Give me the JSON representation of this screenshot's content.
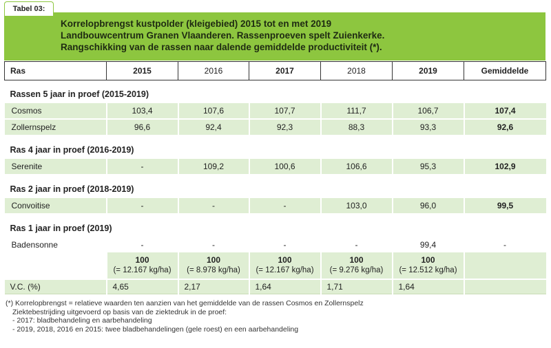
{
  "tab_label": "Tabel 03:",
  "title_lines": [
    "Korrelopbrengst kustpolder (kleigebied) 2015 tot en met 2019",
    "Landbouwcentrum Granen Vlaanderen. Rassenproeven spelt Zuienkerke.",
    "Rangschikking van de rassen naar dalende gemiddelde productiviteit (*)."
  ],
  "header": [
    "Ras",
    "2015",
    "2016",
    "2017",
    "2018",
    "2019",
    "Gemiddelde"
  ],
  "sections": [
    {
      "title": "Rassen 5 jaar in proef (2015-2019)",
      "rows": [
        {
          "name": "Cosmos",
          "values": [
            "103,4",
            "107,6",
            "107,7",
            "111,7",
            "106,7"
          ],
          "avg": "107,4"
        },
        {
          "name": "Zollernspelz",
          "values": [
            "96,6",
            "92,4",
            "92,3",
            "88,3",
            "93,3"
          ],
          "avg": "92,6"
        }
      ]
    },
    {
      "title": "Ras 4 jaar in proef (2016-2019)",
      "rows": [
        {
          "name": "Serenite",
          "values": [
            "-",
            "109,2",
            "100,6",
            "106,6",
            "95,3"
          ],
          "avg": "102,9"
        }
      ]
    },
    {
      "title": "Ras 2 jaar in proef  (2018-2019)",
      "rows": [
        {
          "name": "Convoitise",
          "values": [
            "-",
            "-",
            "-",
            "103,0",
            "96,0"
          ],
          "avg": "99,5"
        }
      ]
    },
    {
      "title": "Ras 1 jaar in proef  (2019)",
      "rows": [
        {
          "name": "Badensonne",
          "values": [
            "-",
            "-",
            "-",
            "-",
            "99,4"
          ],
          "avg": "-"
        }
      ]
    }
  ],
  "reference": [
    {
      "pct": "100",
      "kg": "(= 12.167 kg/ha)"
    },
    {
      "pct": "100",
      "kg": "(= 8.978 kg/ha)"
    },
    {
      "pct": "100",
      "kg": "(= 12.167 kg/ha)"
    },
    {
      "pct": "100",
      "kg": "(= 9.276 kg/ha)"
    },
    {
      "pct": "100",
      "kg": "(= 12.512 kg/ha)"
    }
  ],
  "vc": {
    "label": "V.C. (%)",
    "values": [
      "4,65",
      "2,17",
      "1,64",
      "1,71",
      "1,64"
    ]
  },
  "footnotes": [
    "(*) Korrelopbrengst = relatieve waarden ten aanzien van het gemiddelde van de rassen Cosmos en Zollernspelz",
    "Ziektebestrijding uitgevoerd op basis van de ziektedruk in de proef:",
    "- 2017: bladbehandeling en aarbehandeling",
    "- 2019, 2018, 2016 en 2015: twee bladbehandelingen (gele roest) en een aarbehandeling"
  ],
  "colors": {
    "accent_green": "#8dc63f",
    "row_green": "#dfeed3"
  }
}
